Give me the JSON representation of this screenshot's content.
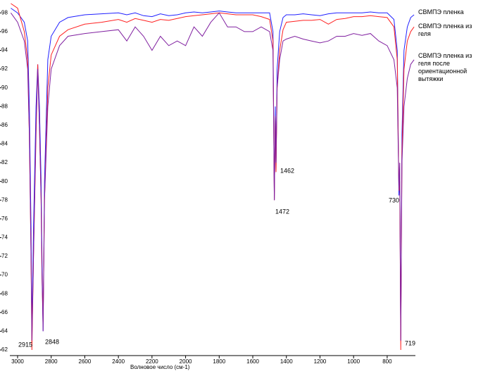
{
  "chart_data": {
    "type": "line",
    "x_label": "Волновое число (см-1)",
    "xlim": [
      3046,
      632
    ],
    "ylim": [
      61.4,
      99
    ],
    "xticks": [
      3000,
      2800,
      2600,
      2400,
      2200,
      2000,
      1800,
      1600,
      1400,
      1200,
      1000,
      800
    ],
    "yticks": [
      62,
      64,
      66,
      68,
      70,
      72,
      74,
      76,
      78,
      80,
      82,
      84,
      86,
      88,
      90,
      92,
      94,
      96,
      98
    ],
    "x": [
      3040,
      3000,
      2960,
      2940,
      2930,
      2920,
      2915,
      2905,
      2890,
      2880,
      2870,
      2860,
      2855,
      2848,
      2840,
      2820,
      2800,
      2750,
      2700,
      2600,
      2500,
      2400,
      2350,
      2300,
      2250,
      2200,
      2150,
      2100,
      2050,
      2000,
      1950,
      1900,
      1850,
      1800,
      1750,
      1700,
      1650,
      1600,
      1550,
      1500,
      1480,
      1472,
      1466,
      1462,
      1455,
      1440,
      1420,
      1400,
      1350,
      1300,
      1250,
      1200,
      1150,
      1100,
      1050,
      1000,
      950,
      900,
      850,
      800,
      760,
      740,
      730,
      725,
      719,
      712,
      700,
      680,
      660,
      640
    ],
    "series": [
      {
        "name": "СВМПЭ пленка",
        "color": "#2020ff",
        "values": [
          98.5,
          98,
          97,
          95,
          88,
          75,
          64,
          75,
          88,
          92.5,
          88,
          80,
          72,
          64,
          80,
          93,
          95.5,
          97,
          97.5,
          97.8,
          97.9,
          98,
          97.8,
          98,
          97.7,
          97.6,
          97.9,
          97.7,
          97.8,
          98,
          98.1,
          98,
          98.1,
          98.2,
          98.1,
          98,
          98,
          98,
          98,
          98,
          96,
          78,
          88,
          81,
          92,
          96,
          97.5,
          97.8,
          97.8,
          97.9,
          97.8,
          97.7,
          97.9,
          98,
          98,
          98,
          98,
          98.1,
          98,
          98,
          97.3,
          94,
          78.5,
          80,
          63,
          85,
          94,
          96.5,
          97.5,
          97.8
        ]
      },
      {
        "name": "СВМПЭ пленка из геля",
        "color": "#ff2020",
        "values": [
          99,
          98.5,
          96,
          93,
          85,
          72,
          62,
          72,
          85,
          92.5,
          86,
          78,
          70,
          65,
          78,
          90,
          93.5,
          95.5,
          96.2,
          96.8,
          97,
          97.3,
          97,
          97.4,
          97.2,
          97,
          97.3,
          97.2,
          97.4,
          97.6,
          97.7,
          97.8,
          97.9,
          98,
          97.9,
          97.8,
          97.8,
          97.8,
          97.6,
          97.3,
          95,
          78,
          87,
          81,
          90,
          94,
          96.2,
          97,
          97.1,
          97.2,
          97.2,
          97.3,
          96.8,
          97.3,
          97.4,
          97.6,
          97.6,
          97.7,
          97.6,
          97.5,
          96.5,
          93,
          79,
          80,
          62,
          83,
          92,
          95,
          96,
          96.5
        ]
      },
      {
        "name": "СВМПЭ пленка из геля после ориентационной вытяжки",
        "color": "#8020a0",
        "values": [
          98,
          97,
          95,
          92,
          85,
          72,
          63,
          72,
          86,
          92,
          86,
          78,
          70,
          64,
          78,
          88,
          92,
          94.5,
          95.5,
          95.8,
          96,
          96.2,
          95,
          96.5,
          95.5,
          94,
          95.5,
          94.5,
          95,
          94.5,
          96.5,
          95.5,
          97,
          98,
          96.5,
          96.5,
          96,
          96,
          96.5,
          96,
          94,
          78,
          87,
          82,
          90,
          93,
          95,
          95.2,
          95.5,
          95.2,
          95,
          94.8,
          95,
          95.5,
          95.5,
          95.8,
          95.6,
          95.8,
          95,
          94.5,
          93,
          90,
          79,
          82,
          63,
          82,
          88,
          91,
          92.5,
          93
        ]
      }
    ],
    "annotations": [
      "2915",
      "2848",
      "1462",
      "1472",
      "730",
      "719"
    ]
  }
}
